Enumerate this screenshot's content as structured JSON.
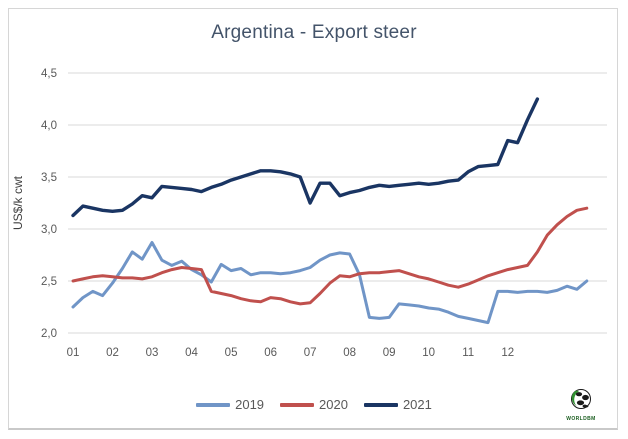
{
  "title": "Argentina - Export steer",
  "y_axis": {
    "label": "US$/k cwt",
    "ticks": [
      {
        "label": "4,5",
        "value": 4.5
      },
      {
        "label": "4,0",
        "value": 4.0
      },
      {
        "label": "3,5",
        "value": 3.5
      },
      {
        "label": "3,0",
        "value": 3.0
      },
      {
        "label": "2,5",
        "value": 2.5
      },
      {
        "label": "2,0",
        "value": 2.0
      }
    ]
  },
  "x_axis": {
    "ticks": [
      "01",
      "02",
      "03",
      "04",
      "05",
      "06",
      "07",
      "08",
      "09",
      "10",
      "11",
      "12"
    ],
    "tick_unit": "month",
    "points_per_month": 4.33
  },
  "legend": {
    "items": [
      {
        "label": "2019",
        "color": "#7095c7"
      },
      {
        "label": "2020",
        "color": "#c0504d"
      },
      {
        "label": "2021",
        "color": "#1a3563"
      }
    ]
  },
  "logo": {
    "text": "WORLDBM",
    "globe_green": "#2f8f2f",
    "globe_black": "#1a1a1a"
  },
  "colors": {
    "gridline": "#d9d9d9",
    "axis_text": "#595959",
    "title_text": "#44546a"
  },
  "chart_data": {
    "type": "line",
    "title": "Argentina - Export steer",
    "xlabel": "",
    "ylabel": "US$/k cwt",
    "ylim": [
      2.0,
      4.5
    ],
    "grid": "horizontal",
    "legend_position": "bottom",
    "x_unit": "week of year (weekly prices, month labels every 4 weeks)",
    "series": [
      {
        "name": "2019",
        "color": "#7095c7",
        "width": 3,
        "values": [
          2.25,
          2.34,
          2.4,
          2.36,
          2.48,
          2.62,
          2.78,
          2.71,
          2.87,
          2.7,
          2.65,
          2.69,
          2.61,
          2.56,
          2.49,
          2.66,
          2.6,
          2.62,
          2.56,
          2.58,
          2.58,
          2.57,
          2.58,
          2.6,
          2.63,
          2.7,
          2.75,
          2.77,
          2.76,
          2.56,
          2.15,
          2.14,
          2.15,
          2.28,
          2.27,
          2.26,
          2.24,
          2.23,
          2.2,
          2.16,
          2.14,
          2.12,
          2.1,
          2.4,
          2.4,
          2.39,
          2.4,
          2.4,
          2.39,
          2.41,
          2.45,
          2.42,
          2.5
        ]
      },
      {
        "name": "2020",
        "color": "#c0504d",
        "width": 3,
        "values": [
          2.5,
          2.52,
          2.54,
          2.55,
          2.54,
          2.53,
          2.53,
          2.52,
          2.54,
          2.58,
          2.61,
          2.63,
          2.62,
          2.61,
          2.4,
          2.38,
          2.36,
          2.33,
          2.31,
          2.3,
          2.34,
          2.33,
          2.3,
          2.28,
          2.29,
          2.38,
          2.48,
          2.55,
          2.54,
          2.57,
          2.58,
          2.58,
          2.59,
          2.6,
          2.57,
          2.54,
          2.52,
          2.49,
          2.46,
          2.44,
          2.47,
          2.51,
          2.55,
          2.58,
          2.61,
          2.63,
          2.65,
          2.78,
          2.94,
          3.04,
          3.12,
          3.18,
          3.2
        ]
      },
      {
        "name": "2021",
        "color": "#1a3563",
        "width": 3.4,
        "values": [
          3.13,
          3.22,
          3.2,
          3.18,
          3.17,
          3.18,
          3.24,
          3.32,
          3.3,
          3.41,
          3.4,
          3.39,
          3.38,
          3.36,
          3.4,
          3.43,
          3.47,
          3.5,
          3.53,
          3.56,
          3.56,
          3.55,
          3.53,
          3.5,
          3.25,
          3.44,
          3.44,
          3.32,
          3.35,
          3.37,
          3.4,
          3.42,
          3.41,
          3.42,
          3.43,
          3.44,
          3.43,
          3.44,
          3.46,
          3.47,
          3.55,
          3.6,
          3.61,
          3.62,
          3.85,
          3.83,
          4.05,
          4.25
        ]
      }
    ]
  }
}
